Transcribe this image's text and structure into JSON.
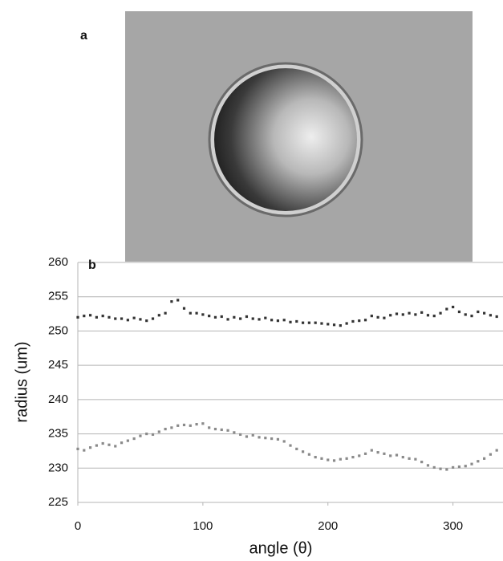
{
  "chart_data": {
    "type": "scatter",
    "panel_labels": [
      "a",
      "b"
    ],
    "xlabel": "angle (θ)",
    "ylabel": "radius (um)",
    "xlim": [
      0,
      340
    ],
    "xticks": [
      0,
      100,
      200,
      300
    ],
    "ylim": [
      225,
      260
    ],
    "yticks": [
      225,
      230,
      235,
      240,
      245,
      250,
      255,
      260
    ],
    "grid": true,
    "x": [
      0,
      5,
      10,
      15,
      20,
      25,
      30,
      35,
      40,
      45,
      50,
      55,
      60,
      65,
      70,
      75,
      80,
      85,
      90,
      95,
      100,
      105,
      110,
      115,
      120,
      125,
      130,
      135,
      140,
      145,
      150,
      155,
      160,
      165,
      170,
      175,
      180,
      185,
      190,
      195,
      200,
      205,
      210,
      215,
      220,
      225,
      230,
      235,
      240,
      245,
      250,
      255,
      260,
      265,
      270,
      275,
      280,
      285,
      290,
      295,
      300,
      305,
      310,
      315,
      320,
      325,
      330,
      335
    ],
    "series": [
      {
        "color": "#333333",
        "values": [
          252,
          252.2,
          252.3,
          252,
          252.2,
          252,
          251.8,
          251.8,
          251.6,
          251.9,
          251.7,
          251.5,
          251.8,
          252.3,
          252.6,
          254.3,
          254.5,
          253.3,
          252.6,
          252.6,
          252.4,
          252.2,
          252,
          252.1,
          251.7,
          252,
          251.8,
          252.1,
          251.8,
          251.7,
          251.9,
          251.6,
          251.5,
          251.6,
          251.3,
          251.4,
          251.2,
          251.2,
          251.2,
          251.1,
          251,
          250.9,
          250.8,
          251.1,
          251.4,
          251.5,
          251.6,
          252.2,
          252,
          251.9,
          252.3,
          252.5,
          252.4,
          252.6,
          252.4,
          252.7,
          252.3,
          252.2,
          252.6,
          253.2,
          253.5,
          252.8,
          252.4,
          252.2,
          252.8,
          252.6,
          252.3,
          252.1
        ]
      },
      {
        "color": "#8a8a8a",
        "values": [
          232.8,
          232.6,
          233,
          233.3,
          233.6,
          233.4,
          233.2,
          233.7,
          234,
          234.3,
          234.7,
          235,
          234.9,
          235.3,
          235.7,
          235.9,
          236.2,
          236.3,
          236.2,
          236.4,
          236.5,
          235.9,
          235.7,
          235.6,
          235.5,
          235.2,
          234.9,
          234.6,
          234.8,
          234.5,
          234.4,
          234.3,
          234.2,
          233.9,
          233.3,
          232.8,
          232.4,
          232,
          231.6,
          231.4,
          231.2,
          231.1,
          231.3,
          231.4,
          231.6,
          231.8,
          232.1,
          232.6,
          232.3,
          232.1,
          231.8,
          231.9,
          231.6,
          231.4,
          231.3,
          230.9,
          230.4,
          230.1,
          229.9,
          229.8,
          230.1,
          230.2,
          230.3,
          230.6,
          231,
          231.4,
          232,
          232.6
        ]
      }
    ]
  }
}
